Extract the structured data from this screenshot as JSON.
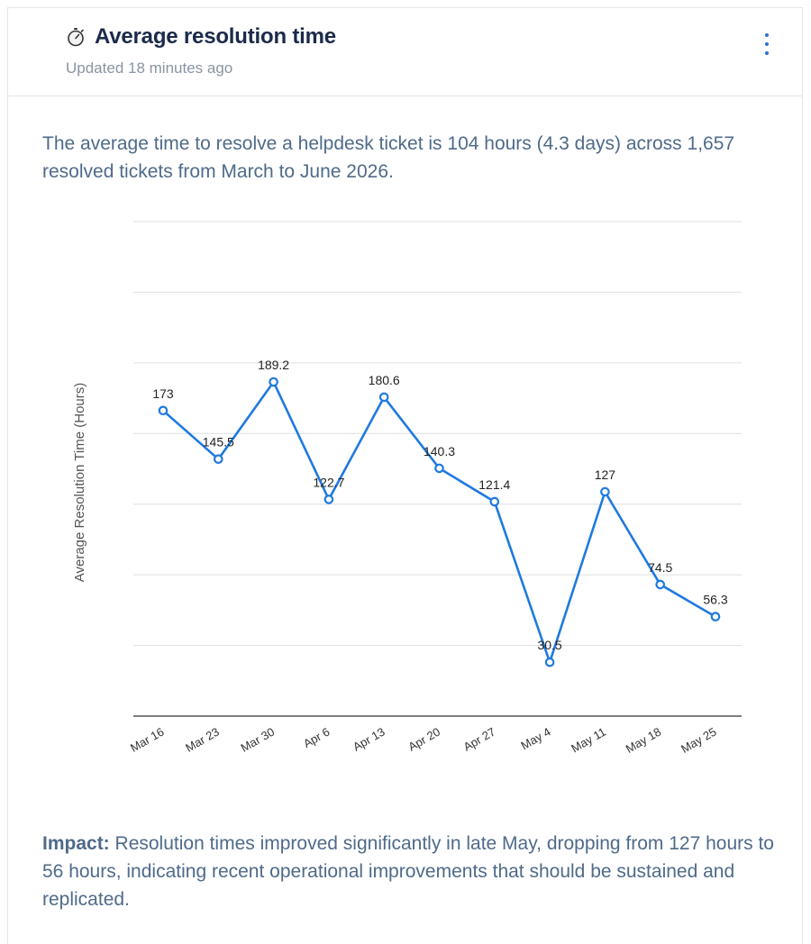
{
  "header": {
    "title": "Average resolution time",
    "updated": "Updated 18 minutes ago",
    "icon": "stopwatch-icon",
    "menu_icon": "vertical-ellipsis-icon"
  },
  "summary": "The average time to resolve a helpdesk ticket is 104 hours (4.3 days) across 1,657 resolved tickets from March to June 2026.",
  "impact": {
    "label": "Impact:",
    "text": " Resolution times improved significantly in late May, dropping from 127 hours to 56 hours, indicating recent operational improvements that should be sustained and replicated."
  },
  "colors": {
    "line": "#1f7ae0",
    "grid": "#dcdfe3",
    "text": "#4f6a8a",
    "title": "#1b2a4a"
  },
  "chart_data": {
    "type": "line",
    "categories": [
      "Mar 16",
      "Mar 23",
      "Mar 30",
      "Apr 6",
      "Apr 13",
      "Apr 20",
      "Apr 27",
      "May 4",
      "May 11",
      "May 18",
      "May 25"
    ],
    "series": [
      {
        "values": [
          173,
          145.5,
          189.2,
          122.7,
          180.6,
          140.3,
          121.4,
          30.5,
          127,
          74.5,
          56.3
        ]
      }
    ],
    "data_labels": [
      "173",
      "145.5",
      "189.2",
      "122.7",
      "180.6",
      "140.3",
      "121.4",
      "30.5",
      "127",
      "74.5",
      "56.3"
    ],
    "ylabel": "Average Resolution Time (Hours)",
    "xlabel": "",
    "ylim": [
      0,
      280
    ],
    "grid": true,
    "y_ticks_visible": false
  }
}
